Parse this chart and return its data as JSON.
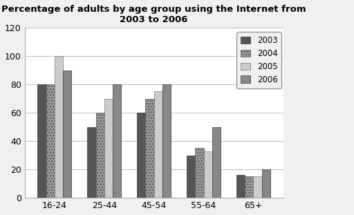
{
  "title": "Percentage of adults by age group using the Internet from\n2003 to 2006",
  "categories": [
    "16-24",
    "25-44",
    "45-54",
    "55-64",
    "65+"
  ],
  "years": [
    "2003",
    "2004",
    "2005",
    "2006"
  ],
  "values": {
    "2003": [
      80,
      50,
      60,
      30,
      16
    ],
    "2004": [
      80,
      60,
      70,
      35,
      15
    ],
    "2005": [
      100,
      70,
      75,
      33,
      15
    ],
    "2006": [
      90,
      80,
      80,
      50,
      20
    ]
  },
  "ylim": [
    0,
    120
  ],
  "yticks": [
    0,
    20,
    40,
    60,
    80,
    100,
    120
  ],
  "bar_facecolors": [
    "#555555",
    "#999999",
    "#cccccc",
    "#888888"
  ],
  "bar_hatches": [
    null,
    "....",
    null,
    "===="
  ],
  "bar_edgecolors": [
    "#333333",
    "#555555",
    "#777777",
    "#333333"
  ],
  "bar_hatch_colors": [
    "#555555",
    "#555555",
    "#888888",
    "#333333"
  ],
  "background_color": "#f0f0f0",
  "plot_bg_color": "#ffffff",
  "legend_labels": [
    "2003",
    "2004",
    "2005",
    "2006"
  ],
  "legend_facecolors": [
    "#555555",
    "#999999",
    "#cccccc",
    "#888888"
  ],
  "legend_hatches": [
    null,
    "....",
    null,
    "===="
  ]
}
